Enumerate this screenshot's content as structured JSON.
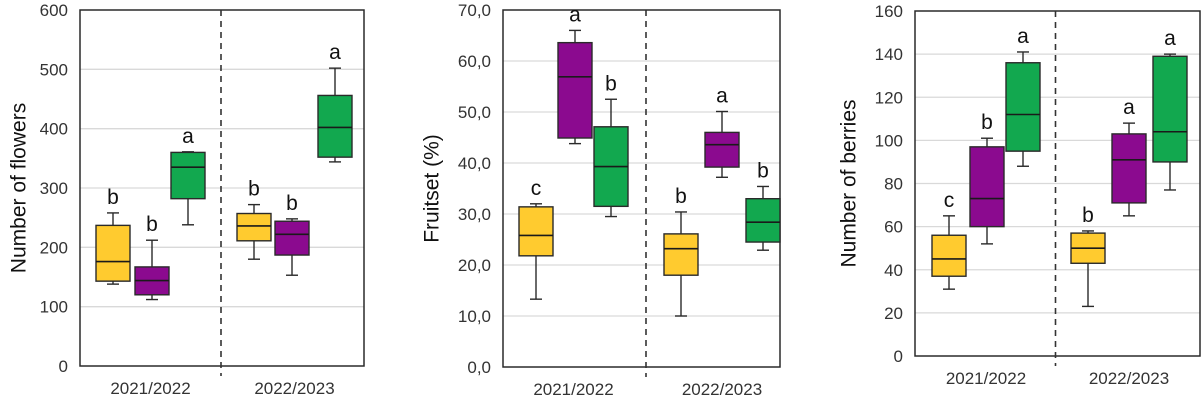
{
  "chart_data": [
    {
      "type": "box",
      "ylabel": "Number of flowers",
      "ylim": [
        0,
        600
      ],
      "yticks": [
        "0",
        "100",
        "200",
        "300",
        "400",
        "500",
        "600"
      ],
      "categories": [
        "2021/2022",
        "2022/2023"
      ],
      "grid": true,
      "series_colors": [
        "#FFCB2F",
        "#8B0A8F",
        "#12A84F"
      ],
      "groups": [
        {
          "category": "2021/2022",
          "boxes": [
            {
              "min": 138,
              "q1": 143,
              "median": 176,
              "q3": 237,
              "max": 258,
              "label": "b"
            },
            {
              "min": 112,
              "q1": 120,
              "median": 144,
              "q3": 167,
              "max": 212,
              "label": "b"
            },
            {
              "min": 238,
              "q1": 282,
              "median": 335,
              "q3": 360,
              "max": 361,
              "label": "a"
            }
          ]
        },
        {
          "category": "2022/2023",
          "boxes": [
            {
              "min": 180,
              "q1": 211,
              "median": 236,
              "q3": 257,
              "max": 272,
              "label": "b"
            },
            {
              "min": 153,
              "q1": 187,
              "median": 222,
              "q3": 244,
              "max": 248,
              "label": "b"
            },
            {
              "min": 344,
              "q1": 352,
              "median": 402,
              "q3": 456,
              "max": 502,
              "label": "a"
            }
          ]
        }
      ]
    },
    {
      "type": "box",
      "ylabel": "Fruitset (%)",
      "ylim": [
        0,
        70
      ],
      "yticks": [
        "0,0",
        "10,0",
        "20,0",
        "30,0",
        "40,0",
        "50,0",
        "60,0",
        "70,0"
      ],
      "categories": [
        "2021/2022",
        "2022/2023"
      ],
      "grid": true,
      "series_colors": [
        "#FFCB2F",
        "#8B0A8F",
        "#12A84F"
      ],
      "groups": [
        {
          "category": "2021/2022",
          "boxes": [
            {
              "min": 13.3,
              "q1": 21.8,
              "median": 25.8,
              "q3": 31.4,
              "max": 32.0,
              "label": "c"
            },
            {
              "min": 43.8,
              "q1": 44.9,
              "median": 56.9,
              "q3": 63.6,
              "max": 66.0,
              "label": "a"
            },
            {
              "min": 29.5,
              "q1": 31.5,
              "median": 39.3,
              "q3": 47.1,
              "max": 52.5,
              "label": "b"
            }
          ]
        },
        {
          "category": "2022/2023",
          "boxes": [
            {
              "min": 10.0,
              "q1": 18.0,
              "median": 23.2,
              "q3": 26.1,
              "max": 30.4,
              "label": "b"
            },
            {
              "min": 37.2,
              "q1": 39.2,
              "median": 43.6,
              "q3": 46.0,
              "max": 50.1,
              "label": "a"
            },
            {
              "min": 22.9,
              "q1": 24.5,
              "median": 28.4,
              "q3": 33.0,
              "max": 35.4,
              "label": "b"
            }
          ]
        }
      ]
    },
    {
      "type": "box",
      "ylabel": "Number of berries",
      "ylim": [
        0,
        160
      ],
      "yticks": [
        "0",
        "20",
        "40",
        "60",
        "80",
        "100",
        "120",
        "140",
        "160"
      ],
      "categories": [
        "2021/2022",
        "2022/2023"
      ],
      "grid": true,
      "series_colors": [
        "#FFCB2F",
        "#8B0A8F",
        "#12A84F"
      ],
      "groups": [
        {
          "category": "2021/2022",
          "boxes": [
            {
              "min": 31,
              "q1": 37,
              "median": 45,
              "q3": 56,
              "max": 65,
              "label": "c"
            },
            {
              "min": 52,
              "q1": 60,
              "median": 73,
              "q3": 97,
              "max": 101,
              "label": "b"
            },
            {
              "min": 88,
              "q1": 95,
              "median": 112,
              "q3": 136,
              "max": 141,
              "label": "a"
            }
          ]
        },
        {
          "category": "2022/2023",
          "boxes": [
            {
              "min": 23,
              "q1": 43,
              "median": 50,
              "q3": 57,
              "max": 58,
              "label": "b"
            },
            {
              "min": 65,
              "q1": 71,
              "median": 91,
              "q3": 103,
              "max": 108,
              "label": "a"
            },
            {
              "min": 77,
              "q1": 90,
              "median": 104,
              "q3": 139,
              "max": 140,
              "label": "a"
            }
          ]
        }
      ]
    }
  ]
}
